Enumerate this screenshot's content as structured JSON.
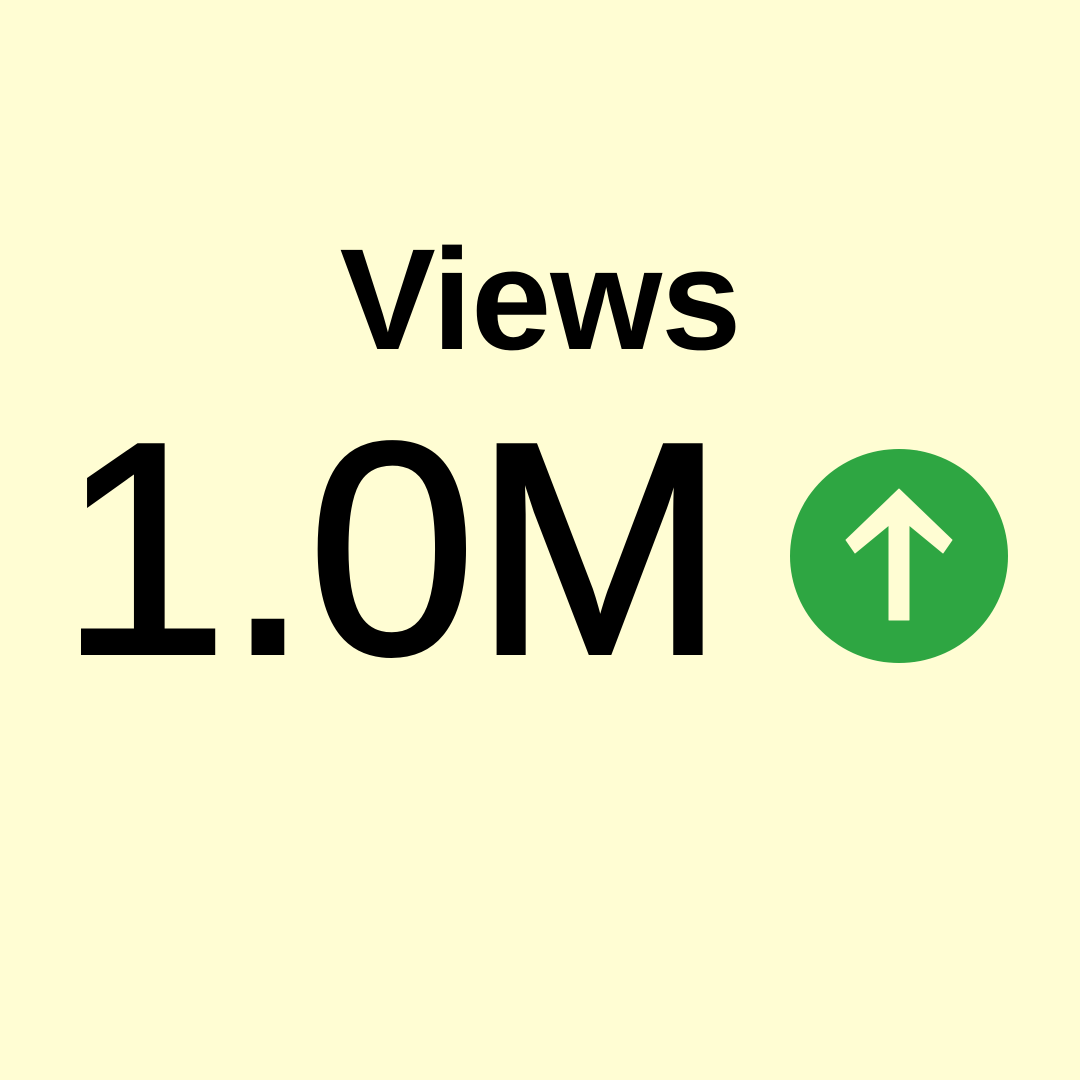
{
  "metric": {
    "label": "Views",
    "value": "1.0M",
    "trend_direction": "up",
    "trend_icon": "arrow-up-circle-icon"
  },
  "colors": {
    "background": "#FFFDD3",
    "text": "#000000",
    "trend_circle": "#2EA642",
    "trend_arrow": "#FFFDD3"
  }
}
